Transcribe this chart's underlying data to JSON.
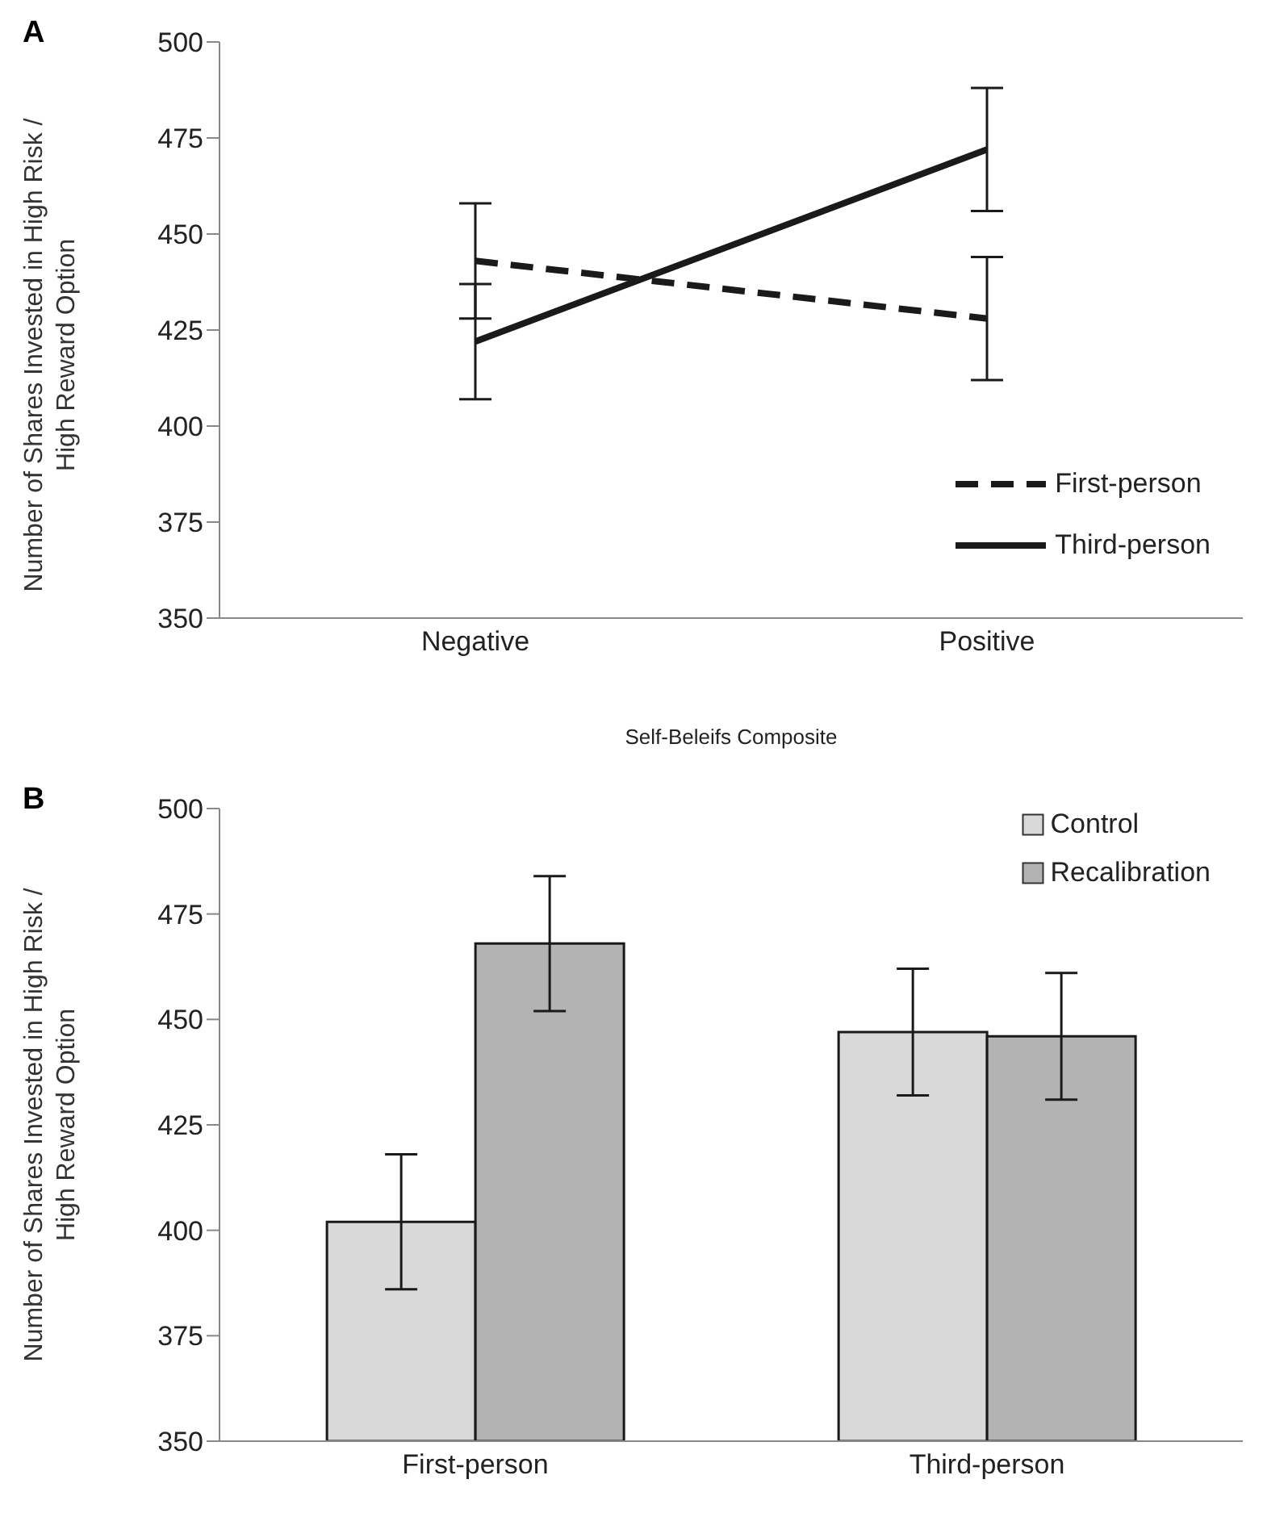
{
  "chart_data": [
    {
      "type": "line",
      "title": "A",
      "xlabel": "Self-Beleifs Composite",
      "ylabel": "Number of Shares Invested in High Risk / High Reward Option",
      "categories": [
        "Negative",
        "Positive"
      ],
      "series": [
        {
          "name": "First-person",
          "color": "#1a1a1a",
          "values": [
            443,
            428
          ],
          "errors": [
            15,
            16
          ],
          "line_style": "dashed"
        },
        {
          "name": "Third-person",
          "color": "#1a1a1a",
          "values": [
            422,
            472
          ],
          "errors": [
            15,
            16
          ],
          "line_style": "solid"
        }
      ],
      "ylim": [
        350,
        500
      ],
      "yticks": [
        350,
        375,
        400,
        425,
        450,
        475,
        500
      ],
      "grid": false,
      "legend": "bottom right",
      "marker": "none"
    },
    {
      "type": "bar",
      "title": "B",
      "ylabel": "Number of Shares Invested in High Risk / High Reward Option",
      "categories": [
        "First-person",
        "Third-person"
      ],
      "series": [
        {
          "name": "Control",
          "color": "#d9d9d9",
          "values": [
            402,
            447
          ],
          "errors": [
            16,
            15
          ]
        },
        {
          "name": "Recalibration",
          "color": "#b3b3b3",
          "values": [
            468,
            446
          ],
          "errors": [
            16,
            15
          ]
        }
      ],
      "ylim": [
        350,
        500
      ],
      "yticks": [
        350,
        375,
        400,
        425,
        450,
        475,
        500
      ],
      "grid": false,
      "legend": "top right"
    }
  ]
}
